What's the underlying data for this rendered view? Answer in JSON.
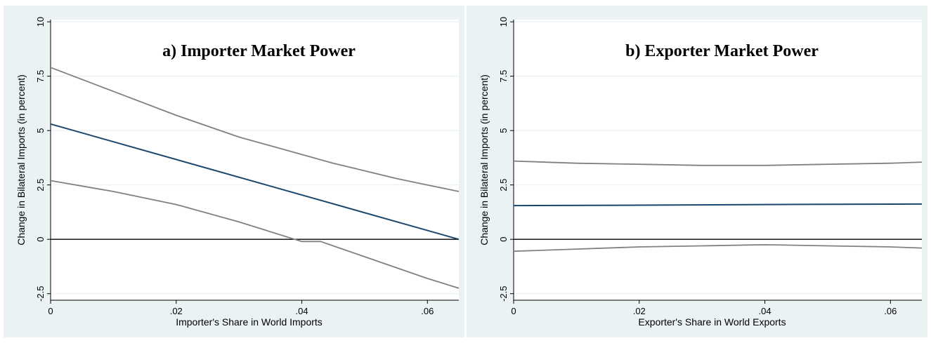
{
  "chart_data": [
    {
      "type": "line",
      "title": "a) Importer Market Power",
      "xlabel": "Importer's Share in World Imports",
      "ylabel": "Change in Bilateral Imports (in percent)",
      "xlim": [
        0,
        0.065
      ],
      "ylim": [
        -2.8,
        10.1
      ],
      "x_ticks": [
        0,
        0.02,
        0.04,
        0.06
      ],
      "x_tick_labels": [
        "0",
        ".02",
        ".04",
        ".06"
      ],
      "y_ticks": [
        -2.5,
        0,
        2.5,
        5,
        7.5,
        10
      ],
      "y_tick_labels": [
        "-2.5",
        "0",
        "2.5",
        "5",
        "7.5",
        "10"
      ],
      "reference_line_y": 0,
      "grid": "horizontal",
      "series": [
        {
          "role": "upper-ci",
          "color": "#808080",
          "x": [
            0,
            0.01,
            0.02,
            0.03,
            0.04,
            0.045,
            0.05,
            0.055,
            0.06,
            0.065
          ],
          "y": [
            7.9,
            6.8,
            5.7,
            4.7,
            3.9,
            3.5,
            3.15,
            2.8,
            2.5,
            2.2
          ]
        },
        {
          "role": "estimate",
          "color": "#1a476f",
          "x": [
            0,
            0.065
          ],
          "y": [
            5.3,
            0
          ]
        },
        {
          "role": "lower-ci",
          "color": "#808080",
          "x": [
            0,
            0.01,
            0.02,
            0.03,
            0.04,
            0.043,
            0.045,
            0.05,
            0.055,
            0.06,
            0.065
          ],
          "y": [
            2.7,
            2.2,
            1.6,
            0.8,
            -0.1,
            -0.1,
            -0.3,
            -0.8,
            -1.3,
            -1.8,
            -2.25
          ]
        }
      ]
    },
    {
      "type": "line",
      "title": "b) Exporter Market Power",
      "xlabel": "Exporter's Share in World Exports",
      "ylabel": "Change in Bilateral Imports (in percent)",
      "xlim": [
        0,
        0.065
      ],
      "ylim": [
        -2.8,
        10.1
      ],
      "x_ticks": [
        0,
        0.02,
        0.04,
        0.06
      ],
      "x_tick_labels": [
        "0",
        ".02",
        ".04",
        ".06"
      ],
      "y_ticks": [
        -2.5,
        0,
        2.5,
        5,
        7.5,
        10
      ],
      "y_tick_labels": [
        "-2.5",
        "0",
        "2.5",
        "5",
        "7.5",
        "10"
      ],
      "reference_line_y": 0,
      "grid": "horizontal",
      "series": [
        {
          "role": "upper-ci",
          "color": "#808080",
          "x": [
            0,
            0.01,
            0.02,
            0.03,
            0.04,
            0.05,
            0.06,
            0.065
          ],
          "y": [
            3.6,
            3.5,
            3.45,
            3.4,
            3.4,
            3.45,
            3.5,
            3.55
          ]
        },
        {
          "role": "estimate",
          "color": "#1a476f",
          "x": [
            0,
            0.02,
            0.04,
            0.065
          ],
          "y": [
            1.55,
            1.57,
            1.6,
            1.62
          ]
        },
        {
          "role": "lower-ci",
          "color": "#808080",
          "x": [
            0,
            0.01,
            0.02,
            0.03,
            0.04,
            0.05,
            0.06,
            0.065
          ],
          "y": [
            -0.55,
            -0.45,
            -0.35,
            -0.3,
            -0.25,
            -0.3,
            -0.35,
            -0.4
          ]
        }
      ]
    }
  ]
}
